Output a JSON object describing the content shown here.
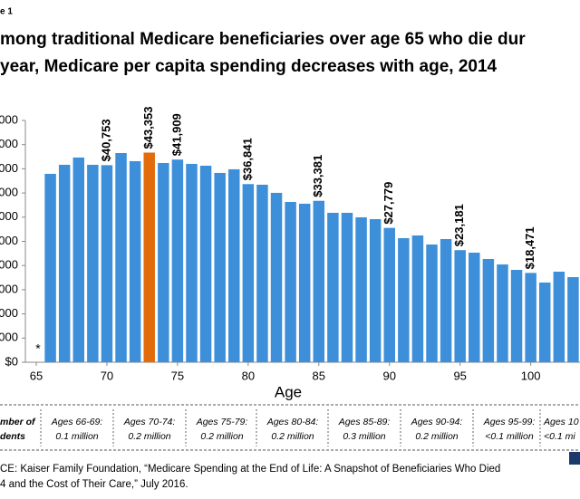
{
  "figure_label": "e 1",
  "chart_data": {
    "type": "bar",
    "title": [
      "mong traditional Medicare beneficiaries over age 65 who die dur",
      "year, Medicare per capita spending decreases with age, 2014"
    ],
    "x_label": "Age",
    "note": "*",
    "x": [
      66,
      67,
      68,
      69,
      70,
      71,
      72,
      73,
      74,
      75,
      76,
      77,
      78,
      79,
      80,
      81,
      82,
      83,
      84,
      85,
      86,
      87,
      88,
      89,
      90,
      91,
      92,
      93,
      94,
      95,
      96,
      97,
      98,
      99,
      100,
      101,
      102,
      103
    ],
    "values": [
      38960,
      40830,
      42330,
      40830,
      40753,
      43260,
      41580,
      43353,
      41200,
      41909,
      41020,
      40640,
      39150,
      39900,
      36841,
      36710,
      35030,
      33150,
      32780,
      33381,
      30900,
      30900,
      29970,
      29590,
      27779,
      25660,
      26220,
      24350,
      25470,
      23181,
      22660,
      21350,
      20230,
      19100,
      18471,
      16480,
      18730,
      17600
    ],
    "value_labels": [
      null,
      null,
      null,
      null,
      "$40,753",
      null,
      null,
      "$43,353",
      null,
      "$41,909",
      null,
      null,
      null,
      null,
      "$36,841",
      null,
      null,
      null,
      null,
      "$33,381",
      null,
      null,
      null,
      null,
      "$27,779",
      null,
      null,
      null,
      null,
      "$23,181",
      null,
      null,
      null,
      null,
      "$18,471",
      null,
      null,
      null
    ],
    "colors": [
      "#3d8fd9",
      "#3d8fd9",
      "#3d8fd9",
      "#3d8fd9",
      "#3d8fd9",
      "#3d8fd9",
      "#3d8fd9",
      "#e36c0a",
      "#3d8fd9",
      "#3d8fd9",
      "#3d8fd9",
      "#3d8fd9",
      "#3d8fd9",
      "#3d8fd9",
      "#3d8fd9",
      "#3d8fd9",
      "#3d8fd9",
      "#3d8fd9",
      "#3d8fd9",
      "#3d8fd9",
      "#3d8fd9",
      "#3d8fd9",
      "#3d8fd9",
      "#3d8fd9",
      "#3d8fd9",
      "#3d8fd9",
      "#3d8fd9",
      "#3d8fd9",
      "#3d8fd9",
      "#3d8fd9",
      "#3d8fd9",
      "#3d8fd9",
      "#3d8fd9",
      "#3d8fd9",
      "#3d8fd9",
      "#3d8fd9",
      "#3d8fd9",
      "#3d8fd9"
    ],
    "xlim": [
      65,
      104
    ],
    "xticks": [
      65,
      70,
      75,
      80,
      85,
      90,
      95,
      100
    ],
    "ylim": [
      0,
      50000
    ],
    "yticks": [
      {
        "value": 0,
        "label": "$0"
      },
      {
        "value": 5000,
        "label": "000"
      },
      {
        "value": 10000,
        "label": "000"
      },
      {
        "value": 15000,
        "label": "000"
      },
      {
        "value": 20000,
        "label": "000"
      },
      {
        "value": 25000,
        "label": "000"
      },
      {
        "value": 30000,
        "label": "000"
      },
      {
        "value": 35000,
        "label": "000"
      },
      {
        "value": 40000,
        "label": "000"
      },
      {
        "value": 45000,
        "label": "000"
      },
      {
        "value": 50000,
        "label": "000"
      }
    ]
  },
  "footer": {
    "row_header": [
      "mber of",
      "dents"
    ],
    "groups": [
      {
        "label": "Ages 66-69:",
        "count": "0.1 million"
      },
      {
        "label": "Ages 70-74:",
        "count": "0.2 million"
      },
      {
        "label": "Ages 75-79:",
        "count": "0.2 million"
      },
      {
        "label": "Ages 80-84:",
        "count": "0.2 million"
      },
      {
        "label": "Ages 85-89:",
        "count": "0.3 million"
      },
      {
        "label": "Ages 90-94:",
        "count": "0.2 million"
      },
      {
        "label": "Ages 95-99:",
        "count": "<0.1 million"
      },
      {
        "label": "Ages 10",
        "count": "<0.1 mi"
      }
    ],
    "source": [
      "CE: Kaiser Family Foundation, “Medicare Spending at the End of Life: A Snapshot of Beneficiaries Who Died",
      "4 and the Cost of Their Care,” July 2016."
    ]
  }
}
